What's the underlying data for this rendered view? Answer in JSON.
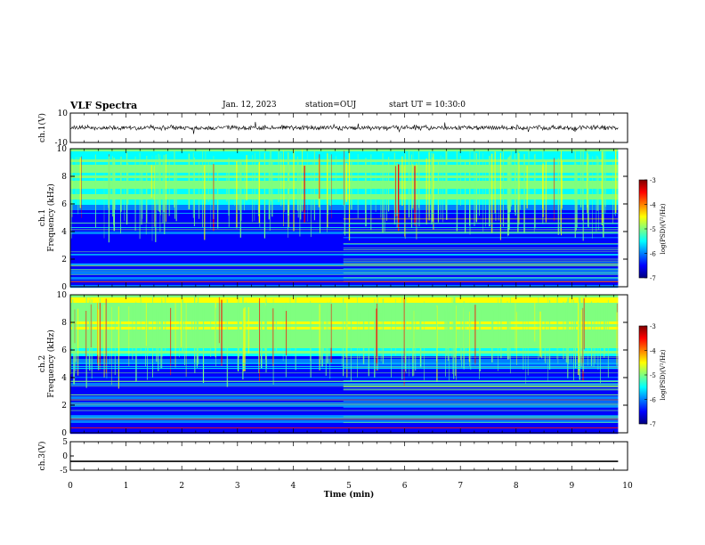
{
  "header": {
    "title": "VLF Spectra",
    "date": "Jan. 12, 2023",
    "station": "station=OUJ",
    "start": "start UT =  10:30:0"
  },
  "chart_data": [
    {
      "type": "line",
      "panel": "ch1-waveform",
      "ylabel": "ch.1(V)",
      "ylim": [
        -10,
        10
      ],
      "yticks": [
        "10",
        "-10"
      ],
      "xlim": [
        0,
        10
      ],
      "x_end": 9.83,
      "baseline": 0,
      "amplitude": 1.3
    },
    {
      "type": "heatmap",
      "panel": "ch1-spectrogram",
      "ylabel": "ch.1\nFrequency (kHz)",
      "ylim": [
        0,
        10
      ],
      "yticks": [
        "0",
        "2",
        "4",
        "6",
        "8",
        "10"
      ],
      "xlim": [
        0,
        10
      ],
      "x_end": 9.83,
      "colorbar": {
        "label": "log(PSD)(V²/Hz)",
        "range": [
          -7,
          -3
        ],
        "ticks": [
          "-3",
          "-4",
          "-5",
          "-6",
          "-7"
        ]
      }
    },
    {
      "type": "heatmap",
      "panel": "ch2-spectrogram",
      "ylabel": "ch.2\nFrequency (kHz)",
      "ylim": [
        0,
        10
      ],
      "yticks": [
        "0",
        "2",
        "4",
        "6",
        "8",
        "10"
      ],
      "xlim": [
        0,
        10
      ],
      "x_end": 9.83,
      "colorbar": {
        "label": "log(PSD)(V²/Hz)",
        "range": [
          -7,
          -3
        ],
        "ticks": [
          "-3",
          "-4",
          "-5",
          "-6",
          "-7"
        ]
      }
    },
    {
      "type": "line",
      "panel": "ch3-waveform",
      "ylabel": "ch.3(V)",
      "ylim": [
        -5,
        5
      ],
      "yticks": [
        "5",
        "0",
        "-5"
      ],
      "xlim": [
        0,
        10
      ],
      "x_end": 9.83,
      "baseline": -1.9,
      "amplitude": 0
    }
  ],
  "xaxis": {
    "label": "Time (min)",
    "ticks": [
      "0",
      "1",
      "2",
      "3",
      "4",
      "5",
      "6",
      "7",
      "8",
      "9",
      "10"
    ]
  },
  "colors": {
    "jet": [
      "#00007f",
      "#0000ff",
      "#007fff",
      "#00ffff",
      "#7fff7f",
      "#ffff00",
      "#ff7f00",
      "#ff0000",
      "#7f0000"
    ]
  }
}
